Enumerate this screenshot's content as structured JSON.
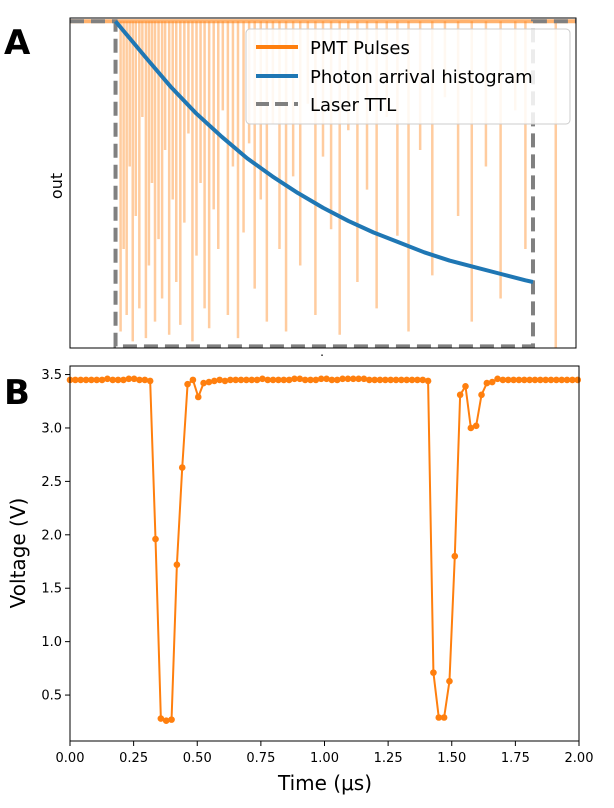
{
  "figure": {
    "panel_a_letter": "A",
    "panel_b_letter": "B"
  },
  "colors": {
    "pmt": "#ff7f0e",
    "histogram": "#1f77b4",
    "ttl": "#808080",
    "axis": "#000000"
  },
  "chart_data": [
    {
      "type": "line",
      "panel": "A",
      "ylabel": "out",
      "xlabel": ".",
      "grid": false,
      "legend_position": "top-right",
      "xlim": [
        0,
        1
      ],
      "ylim": [
        0,
        1
      ],
      "legend": [
        "PMT Pulses",
        "Photon arrival histogram",
        "Laser TTL"
      ],
      "series": [
        {
          "name": "Laser TTL",
          "style": "dashed",
          "points": [
            [
              0.0,
              0.99
            ],
            [
              0.09,
              0.99
            ],
            [
              0.09,
              0.005
            ],
            [
              0.915,
              0.005
            ],
            [
              0.915,
              0.99
            ],
            [
              1.0,
              0.99
            ]
          ]
        },
        {
          "name": "Photon arrival histogram",
          "points": [
            [
              0.09,
              0.99
            ],
            [
              0.15,
              0.88
            ],
            [
              0.2,
              0.79
            ],
            [
              0.25,
              0.71
            ],
            [
              0.3,
              0.64
            ],
            [
              0.35,
              0.575
            ],
            [
              0.4,
              0.52
            ],
            [
              0.45,
              0.47
            ],
            [
              0.5,
              0.425
            ],
            [
              0.55,
              0.385
            ],
            [
              0.6,
              0.35
            ],
            [
              0.65,
              0.32
            ],
            [
              0.7,
              0.29
            ],
            [
              0.75,
              0.265
            ],
            [
              0.8,
              0.245
            ],
            [
              0.85,
              0.225
            ],
            [
              0.9,
              0.205
            ],
            [
              0.915,
              0.2
            ]
          ]
        },
        {
          "name": "PMT Pulses",
          "style": "vertical lines from top",
          "baseline": 0.99,
          "pulses": [
            [
              0.1,
              0.05
            ],
            [
              0.106,
              0.3
            ],
            [
              0.112,
              0.1
            ],
            [
              0.118,
              0.55
            ],
            [
              0.124,
              0.02
            ],
            [
              0.13,
              0.4
            ],
            [
              0.137,
              0.12
            ],
            [
              0.143,
              0.7
            ],
            [
              0.15,
              0.03
            ],
            [
              0.156,
              0.25
            ],
            [
              0.162,
              0.5
            ],
            [
              0.168,
              0.08
            ],
            [
              0.175,
              0.33
            ],
            [
              0.182,
              0.15
            ],
            [
              0.188,
              0.6
            ],
            [
              0.196,
              0.04
            ],
            [
              0.203,
              0.45
            ],
            [
              0.21,
              0.2
            ],
            [
              0.218,
              0.07
            ],
            [
              0.226,
              0.38
            ],
            [
              0.234,
              0.65
            ],
            [
              0.242,
              0.02
            ],
            [
              0.25,
              0.28
            ],
            [
              0.258,
              0.5
            ],
            [
              0.266,
              0.12
            ],
            [
              0.275,
              0.06
            ],
            [
              0.284,
              0.42
            ],
            [
              0.293,
              0.3
            ],
            [
              0.302,
              0.72
            ],
            [
              0.312,
              0.1
            ],
            [
              0.322,
              0.55
            ],
            [
              0.332,
              0.03
            ],
            [
              0.343,
              0.35
            ],
            [
              0.354,
              0.62
            ],
            [
              0.365,
              0.18
            ],
            [
              0.377,
              0.45
            ],
            [
              0.389,
              0.08
            ],
            [
              0.401,
              0.68
            ],
            [
              0.414,
              0.3
            ],
            [
              0.427,
              0.05
            ],
            [
              0.441,
              0.52
            ],
            [
              0.455,
              0.25
            ],
            [
              0.47,
              0.74
            ],
            [
              0.485,
              0.1
            ],
            [
              0.5,
              0.58
            ],
            [
              0.516,
              0.36
            ],
            [
              0.533,
              0.04
            ],
            [
              0.55,
              0.66
            ],
            [
              0.568,
              0.2
            ],
            [
              0.587,
              0.48
            ],
            [
              0.606,
              0.12
            ],
            [
              0.626,
              0.7
            ],
            [
              0.647,
              0.34
            ],
            [
              0.669,
              0.05
            ],
            [
              0.692,
              0.6
            ],
            [
              0.716,
              0.22
            ],
            [
              0.741,
              0.76
            ],
            [
              0.767,
              0.4
            ],
            [
              0.794,
              0.08
            ],
            [
              0.822,
              0.55
            ],
            [
              0.851,
              0.15
            ],
            [
              0.88,
              0.72
            ],
            [
              0.9,
              0.3
            ],
            [
              0.96,
              0.0
            ]
          ]
        }
      ]
    },
    {
      "type": "line",
      "panel": "B",
      "xlabel": "Time (μs)",
      "ylabel": "Voltage (V)",
      "grid": false,
      "xlim": [
        0,
        2
      ],
      "ylim": [
        0.07,
        3.58
      ],
      "xticks": [
        "0.00",
        "0.25",
        "0.50",
        "0.75",
        "1.00",
        "1.25",
        "1.50",
        "1.75",
        "2.00"
      ],
      "yticks": [
        "0.5",
        "1.0",
        "1.5",
        "2.0",
        "2.5",
        "3.0",
        "3.5"
      ],
      "series": [
        {
          "name": "",
          "marker": "circle",
          "x": [
            0.0,
            0.021,
            0.042,
            0.063,
            0.084,
            0.105,
            0.126,
            0.147,
            0.168,
            0.189,
            0.21,
            0.231,
            0.252,
            0.273,
            0.294,
            0.315,
            0.336,
            0.357,
            0.378,
            0.399,
            0.42,
            0.441,
            0.462,
            0.483,
            0.504,
            0.525,
            0.546,
            0.567,
            0.588,
            0.609,
            0.63,
            0.651,
            0.672,
            0.693,
            0.714,
            0.735,
            0.756,
            0.777,
            0.798,
            0.819,
            0.84,
            0.861,
            0.882,
            0.903,
            0.924,
            0.945,
            0.966,
            0.987,
            1.008,
            1.029,
            1.05,
            1.071,
            1.092,
            1.113,
            1.134,
            1.155,
            1.176,
            1.197,
            1.218,
            1.239,
            1.26,
            1.281,
            1.302,
            1.323,
            1.344,
            1.365,
            1.386,
            1.407,
            1.428,
            1.449,
            1.47,
            1.491,
            1.512,
            1.533,
            1.554,
            1.575,
            1.596,
            1.617,
            1.638,
            1.659,
            1.68,
            1.701,
            1.722,
            1.743,
            1.764,
            1.785,
            1.806,
            1.827,
            1.848,
            1.869,
            1.89,
            1.911,
            1.932,
            1.953,
            1.974,
            1.995
          ],
          "y": [
            3.45,
            3.45,
            3.45,
            3.45,
            3.45,
            3.45,
            3.45,
            3.46,
            3.45,
            3.45,
            3.45,
            3.46,
            3.46,
            3.45,
            3.45,
            3.44,
            1.96,
            0.28,
            0.26,
            0.27,
            1.72,
            2.63,
            3.41,
            3.45,
            3.29,
            3.42,
            3.43,
            3.44,
            3.45,
            3.44,
            3.45,
            3.45,
            3.45,
            3.45,
            3.45,
            3.45,
            3.46,
            3.45,
            3.45,
            3.45,
            3.45,
            3.45,
            3.46,
            3.46,
            3.45,
            3.45,
            3.45,
            3.46,
            3.46,
            3.45,
            3.45,
            3.46,
            3.46,
            3.46,
            3.46,
            3.46,
            3.45,
            3.45,
            3.45,
            3.45,
            3.45,
            3.45,
            3.45,
            3.45,
            3.45,
            3.45,
            3.45,
            3.44,
            0.71,
            0.29,
            0.29,
            0.63,
            1.8,
            3.31,
            3.39,
            3.0,
            3.02,
            3.31,
            3.42,
            3.43,
            3.46,
            3.45,
            3.45,
            3.45,
            3.45,
            3.45,
            3.45,
            3.45,
            3.45,
            3.45,
            3.45,
            3.45,
            3.45,
            3.45,
            3.45,
            3.45
          ]
        }
      ]
    }
  ]
}
